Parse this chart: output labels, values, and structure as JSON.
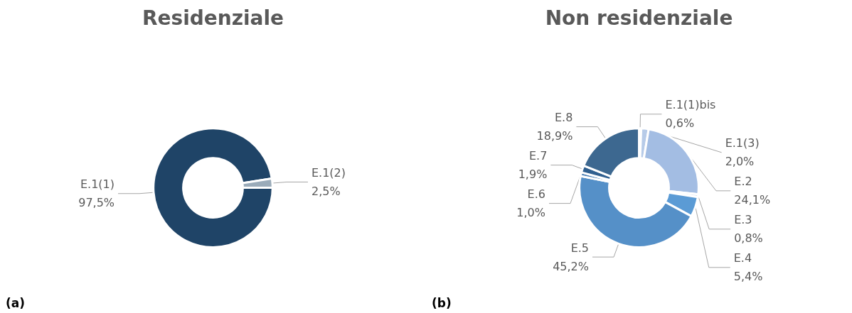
{
  "chart_data": [
    {
      "type": "donut",
      "title": "Residenziale",
      "categories": [
        "E.1(1)",
        "E.1(2)"
      ],
      "values": [
        97.5,
        2.5
      ],
      "colors": [
        "#1f4467",
        "#9aabb9"
      ],
      "value_labels": [
        "97,5%",
        "2,5%"
      ],
      "annotations": [
        "(a)"
      ]
    },
    {
      "type": "donut",
      "title": "Non residenziale",
      "categories": [
        "E.1(1)bis",
        "E.1(3)",
        "E.2",
        "E.3",
        "E.4",
        "E.5",
        "E.6",
        "E.7",
        "E.8"
      ],
      "values": [
        0.6,
        2.0,
        24.1,
        0.8,
        5.4,
        45.2,
        1.0,
        1.9,
        18.9
      ],
      "colors": [
        "#c9d9ef",
        "#b7cbe8",
        "#a3bde3",
        "#d5e1f1",
        "#5b9bd5",
        "#5590c8",
        "#4a7fb5",
        "#2f5f8f",
        "#3d6890"
      ],
      "value_labels": [
        "0,6%",
        "2,0%",
        "24,1%",
        "0,8%",
        "5,4%",
        "45,2%",
        "1,0%",
        "1,9%",
        "18,9%"
      ],
      "annotations": [
        "(b)"
      ]
    }
  ]
}
